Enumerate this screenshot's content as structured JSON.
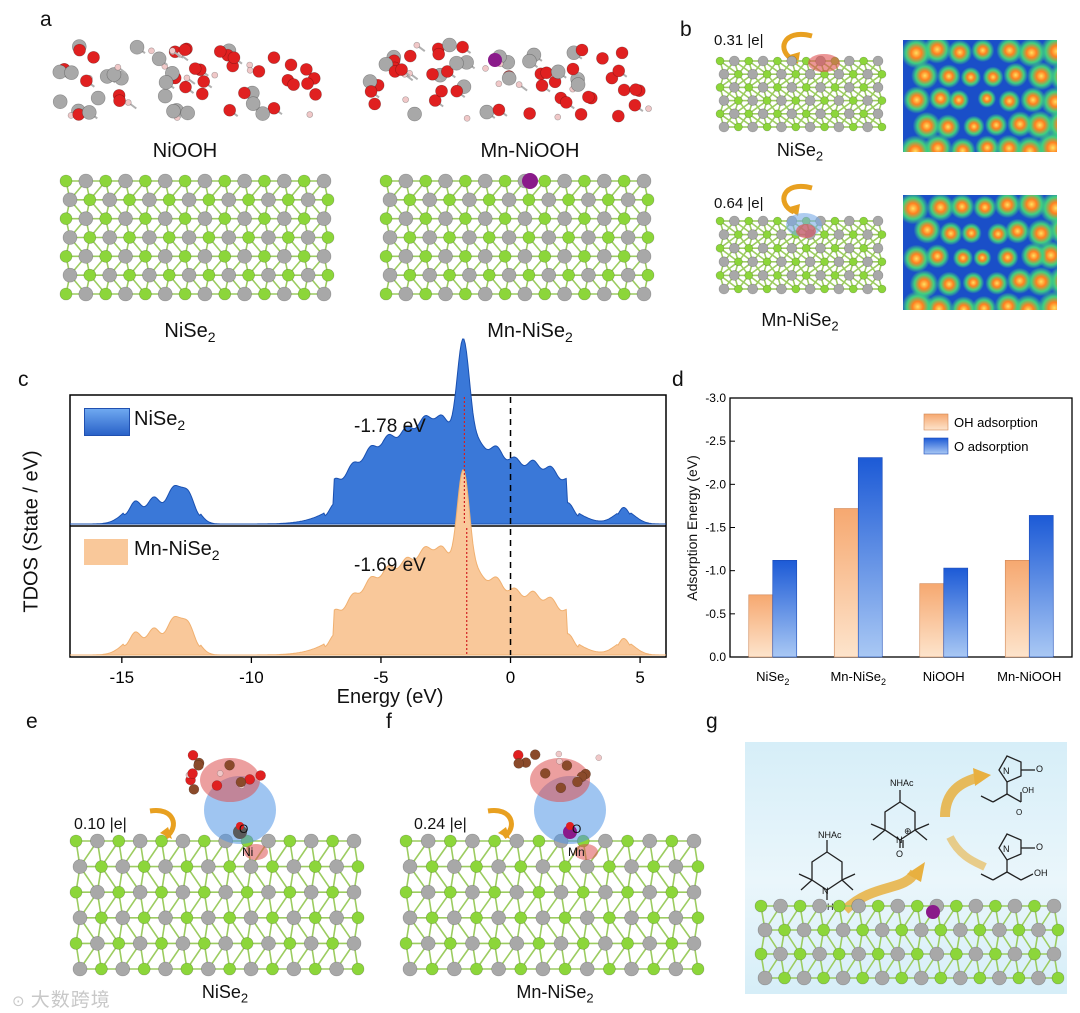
{
  "panel_letters": {
    "a": "a",
    "b": "b",
    "c": "c",
    "d": "d",
    "e": "e",
    "f": "f",
    "g": "g"
  },
  "panel_a": {
    "labels": {
      "niooh": "NiOOH",
      "mn_niooh": "Mn-NiOOH",
      "nise2_base": "NiSe",
      "mn_nise2_base": "Mn-NiSe",
      "sub": "2"
    }
  },
  "panel_b": {
    "charge_top": "0.31 |e|",
    "charge_bottom": "0.64 |e|",
    "label_top_base": "NiSe",
    "label_bottom_base": "Mn-NiSe",
    "sub": "2"
  },
  "panel_c": {
    "ylabel": "TDOS (State / eV)",
    "xlabel": "Energy (eV)",
    "legend_top_base": "NiSe",
    "legend_bottom_base": "Mn-NiSe",
    "sub": "2",
    "peak_top": "-1.78 eV",
    "peak_bottom": "-1.69 eV",
    "xticks": [
      "-15",
      "-10",
      "-5",
      "0",
      "5"
    ]
  },
  "panel_e": {
    "charge": "0.10 |e|",
    "label_base": "NiSe",
    "sub": "2",
    "atom_o": "O",
    "atom_ni": "Ni"
  },
  "panel_f": {
    "charge": "0.24 |e|",
    "label_base": "Mn-NiSe",
    "sub": "2",
    "atom_o": "O",
    "atom_mn": "Mn"
  },
  "panel_g": {
    "nhac_top": "NHAc",
    "nhac_left": "NHAc",
    "n_left": "N",
    "oh_left": "OH",
    "n_center": "N",
    "o_center": "O",
    "plus": "⊕",
    "n_r1": "N",
    "o_r1": "O",
    "oh_r1": "OH",
    "o2_r1": "O",
    "n_r2": "N",
    "o_r2": "O",
    "oh_r2": "OH"
  },
  "watermark": "大数跨境",
  "colors": {
    "se": "#8cd63a",
    "ni": "#a8a8a8",
    "o": "#e02020",
    "h": "#f0c8c8",
    "mn": "#8a1a8a",
    "blue_fill": "#3a78d8",
    "orange_fill": "#f9c89a",
    "bar_orange": "#f8b888",
    "bar_blue": "#2060d8"
  },
  "chart_data": {
    "type": "bar",
    "categories": [
      "NiSe2",
      "Mn-NiSe2",
      "NiOOH",
      "Mn-NiOOH"
    ],
    "series": [
      {
        "name": "OH adsorption",
        "values": [
          -0.72,
          -1.72,
          -0.85,
          -1.12
        ]
      },
      {
        "name": "O adsorption",
        "values": [
          -1.12,
          -2.31,
          -1.03,
          -1.64
        ]
      }
    ],
    "ylabel": "Adsorption Energy (eV)",
    "ylim": [
      0.0,
      -3.0
    ],
    "yticks": [
      "-3.0",
      "-2.5",
      "-2.0",
      "-1.5",
      "-1.0",
      "-0.5",
      "0.0"
    ],
    "xtick_labels": [
      [
        "NiSe",
        "2"
      ],
      [
        "Mn-NiSe",
        "2"
      ],
      [
        "NiOOH",
        ""
      ],
      [
        "Mn-NiOOH",
        ""
      ]
    ],
    "legend_position": "top-right"
  }
}
